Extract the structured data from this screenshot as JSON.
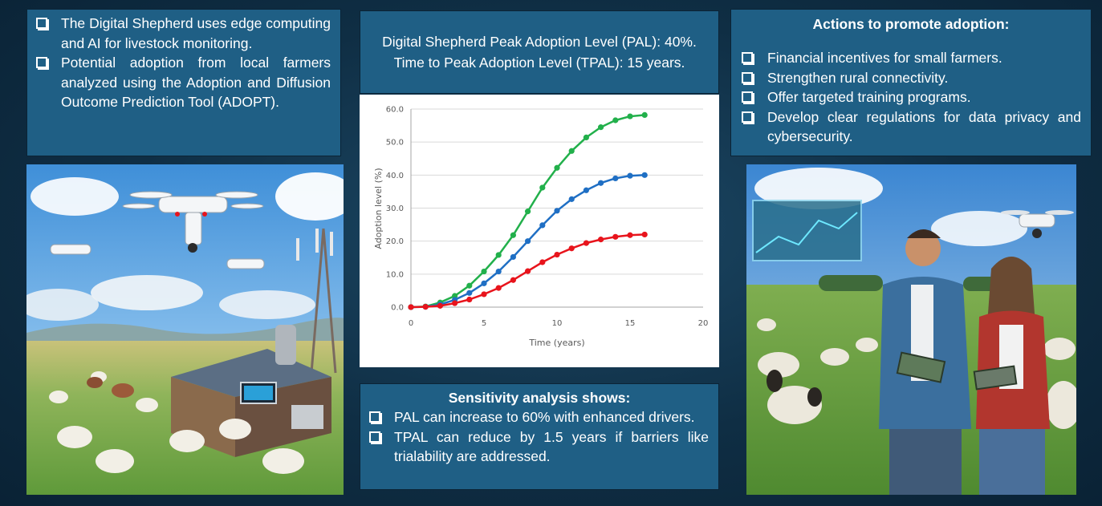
{
  "intro": {
    "bullets": [
      "The Digital Shepherd uses edge computing and AI for livestock monitoring.",
      "Potential adoption from local farmers analyzed using the Adoption and Diffusion Outcome Prediction Tool (ADOPT)."
    ]
  },
  "summary": {
    "pal_line": "Digital Shepherd Peak Adoption Level (PAL): 40%.",
    "tpal_line": "Time to Peak Adoption Level (TPAL): 15 years."
  },
  "actions": {
    "title": "Actions to promote adoption:",
    "items": [
      "Financial incentives for small farmers.",
      "Strengthen rural connectivity.",
      "Offer targeted training programs.",
      "Develop clear regulations for data privacy and cybersecurity."
    ]
  },
  "sensitivity": {
    "title": "Sensitivity analysis shows:",
    "items": [
      "PAL can increase to 60% with enhanced drivers.",
      "TPAL can reduce by 1.5 years if barriers like trialability are addressed."
    ]
  },
  "chart_data": {
    "type": "line",
    "xlabel": "Time (years)",
    "ylabel": "Adoption level (%)",
    "xlim": [
      0,
      20
    ],
    "ylim": [
      0,
      60
    ],
    "x_ticks": [
      "0",
      "5",
      "10",
      "15",
      "20"
    ],
    "y_ticks": [
      "0.0",
      "10.0",
      "20.0",
      "30.0",
      "40.0",
      "50.0",
      "60.0"
    ],
    "grid": "horizontal",
    "legend": "none",
    "x": [
      0,
      1,
      2,
      3,
      4,
      5,
      6,
      7,
      8,
      9,
      10,
      11,
      12,
      13,
      14,
      15,
      16
    ],
    "series": [
      {
        "color": "#22b04b",
        "values": [
          0,
          0.2,
          1.4,
          3.4,
          6.5,
          10.8,
          15.8,
          21.8,
          29,
          36.2,
          42.2,
          47.3,
          51.4,
          54.5,
          56.6,
          57.8,
          58.2
        ]
      },
      {
        "color": "#1f6fc4",
        "values": [
          0,
          0.1,
          0.8,
          2.2,
          4.3,
          7.2,
          10.8,
          15.2,
          20,
          24.8,
          29.2,
          32.7,
          35.4,
          37.6,
          39,
          39.8,
          40
        ]
      },
      {
        "color": "#e8141c",
        "values": [
          0,
          0.1,
          0.4,
          1.2,
          2.3,
          3.9,
          5.8,
          8.2,
          10.9,
          13.6,
          15.9,
          17.8,
          19.4,
          20.5,
          21.3,
          21.8,
          22
        ]
      }
    ]
  },
  "images": {
    "left_scene": "drone-farm-illustration",
    "right_scene": "farmers-with-tablets-illustration"
  }
}
